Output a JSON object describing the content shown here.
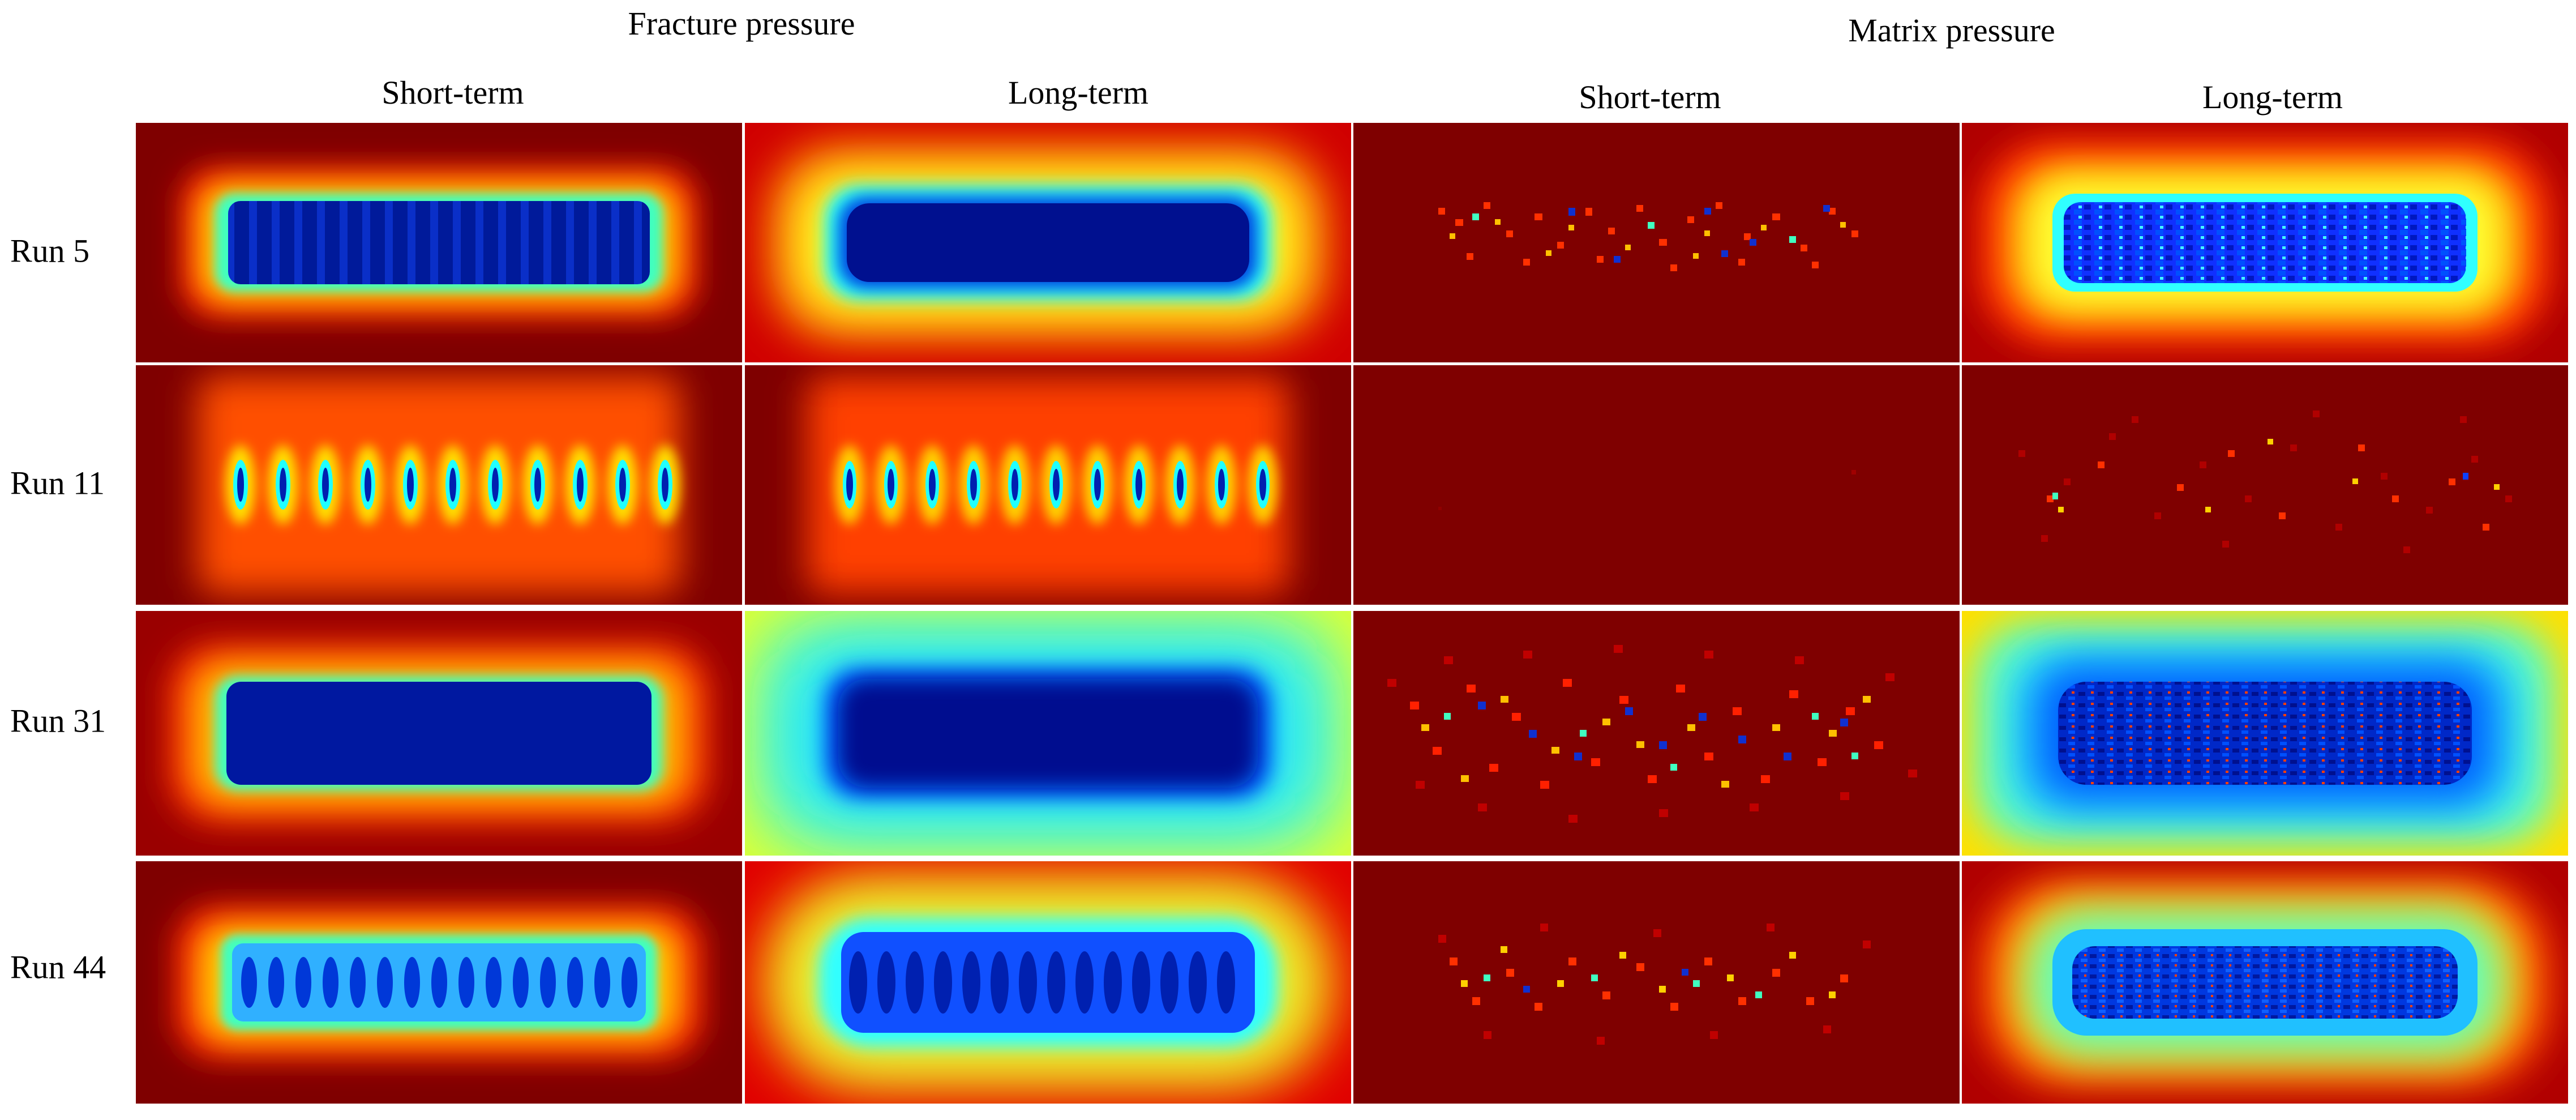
{
  "groups": {
    "fracture": "Fracture pressure",
    "matrix": "Matrix pressure"
  },
  "columns": [
    "Short-term",
    "Long-term",
    "Short-term",
    "Long-term"
  ],
  "rows": [
    "Run 5",
    "Run 11",
    "Run 31",
    "Run 44"
  ],
  "colormap": [
    "#00008f",
    "#0050ff",
    "#00ffff",
    "#80ff80",
    "#ffff00",
    "#ff8000",
    "#ff0000",
    "#7f0000"
  ]
}
